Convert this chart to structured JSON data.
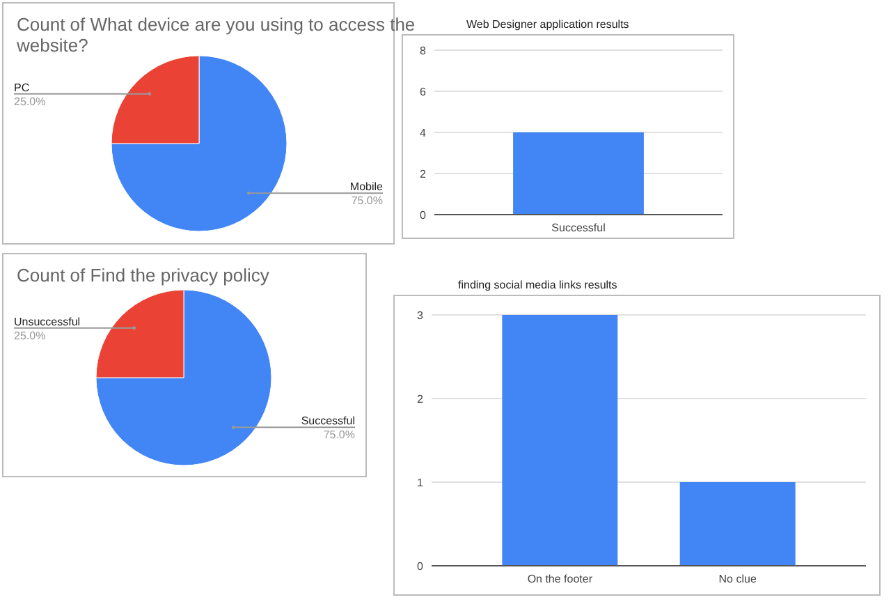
{
  "chart_data": [
    {
      "type": "pie",
      "title": "Count of What device are you using to access the website?",
      "categories": [
        "Mobile",
        "PC"
      ],
      "values": [
        75,
        25
      ],
      "colors": [
        "#4285f4",
        "#ea4335"
      ],
      "value_labels": [
        "75.0%",
        "25.0%"
      ]
    },
    {
      "type": "bar",
      "title": "Web Designer application results",
      "categories": [
        "Successful"
      ],
      "values": [
        4
      ],
      "color": "#4285f4",
      "ylim": [
        0,
        8
      ],
      "yticks": [
        0,
        2,
        4,
        6,
        8
      ],
      "grid": "y"
    },
    {
      "type": "pie",
      "title": "Count of Find the privacy policy",
      "categories": [
        "Successful",
        "Unsuccessful"
      ],
      "values": [
        75,
        25
      ],
      "colors": [
        "#4285f4",
        "#ea4335"
      ],
      "value_labels": [
        "75.0%",
        "25.0%"
      ]
    },
    {
      "type": "bar",
      "title": "finding social media links results",
      "categories": [
        "On the footer",
        "No clue"
      ],
      "values": [
        3,
        1
      ],
      "color": "#4285f4",
      "ylim": [
        0,
        3
      ],
      "yticks": [
        0,
        1,
        2,
        3
      ],
      "grid": "y"
    }
  ]
}
